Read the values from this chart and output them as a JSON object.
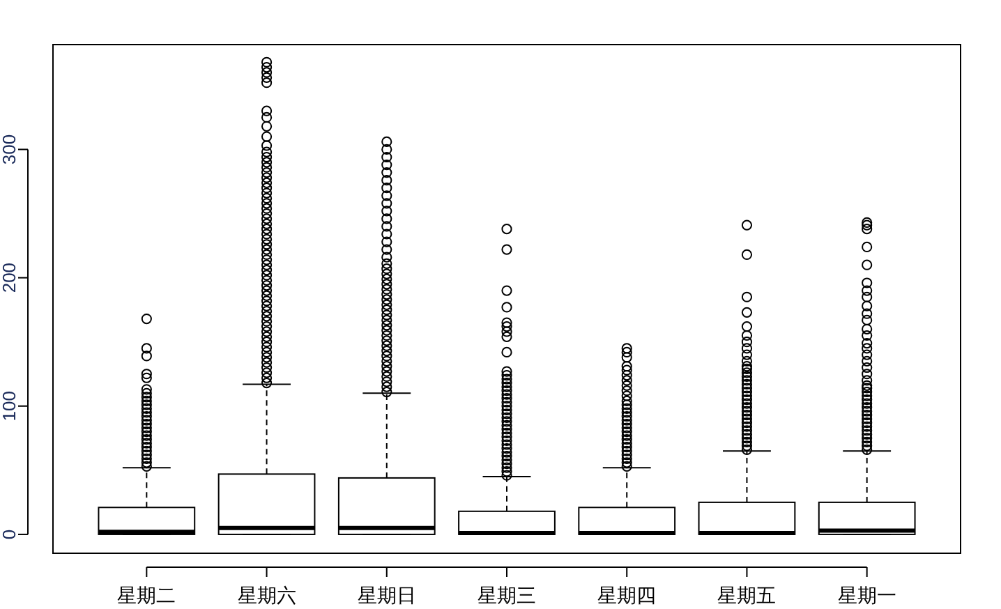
{
  "chart_data": {
    "type": "box",
    "categories": [
      "星期二",
      "星期六",
      "星期日",
      "星期三",
      "星期四",
      "星期五",
      "星期一"
    ],
    "ylim": [
      -14.7,
      381.7
    ],
    "yticks": [
      0,
      100,
      200,
      300
    ],
    "boxes": [
      {
        "low": 0,
        "q1": 0,
        "median": 2,
        "q3": 21,
        "high": 52,
        "outliers": [
          53,
          56,
          59,
          62,
          65,
          68,
          71,
          74,
          77,
          80,
          83,
          86,
          89,
          92,
          95,
          98,
          101,
          104,
          107,
          110,
          113,
          122,
          125,
          139,
          145,
          168
        ]
      },
      {
        "low": 0,
        "q1": 0,
        "median": 5,
        "q3": 47,
        "high": 117,
        "outliers": [
          118,
          122,
          126,
          130,
          134,
          138,
          142,
          146,
          150,
          154,
          158,
          162,
          166,
          170,
          174,
          178,
          182,
          186,
          190,
          194,
          198,
          202,
          206,
          210,
          214,
          218,
          222,
          226,
          230,
          234,
          238,
          242,
          246,
          250,
          254,
          258,
          262,
          266,
          270,
          274,
          278,
          282,
          286,
          290,
          294,
          298,
          303,
          310,
          318,
          325,
          330,
          352,
          356,
          360,
          364,
          368
        ]
      },
      {
        "low": 0,
        "q1": 0,
        "median": 5,
        "q3": 44,
        "high": 110,
        "outliers": [
          111,
          115,
          119,
          123,
          127,
          131,
          135,
          139,
          143,
          147,
          151,
          155,
          159,
          163,
          167,
          171,
          175,
          179,
          183,
          187,
          191,
          195,
          199,
          203,
          207,
          211,
          216,
          222,
          228,
          234,
          240,
          246,
          252,
          258,
          264,
          270,
          276,
          282,
          288,
          294,
          300,
          306
        ]
      },
      {
        "low": 0,
        "q1": 0,
        "median": 1,
        "q3": 18,
        "high": 45,
        "outliers": [
          46,
          49,
          52,
          55,
          58,
          61,
          64,
          67,
          70,
          73,
          76,
          79,
          82,
          85,
          88,
          91,
          94,
          97,
          100,
          103,
          106,
          109,
          112,
          115,
          118,
          121,
          124,
          127,
          142,
          154,
          158,
          162,
          165,
          177,
          190,
          222,
          238
        ]
      },
      {
        "low": 0,
        "q1": 0,
        "median": 1,
        "q3": 21,
        "high": 52,
        "outliers": [
          53,
          56,
          59,
          62,
          65,
          68,
          71,
          74,
          77,
          80,
          83,
          86,
          89,
          92,
          95,
          98,
          101,
          104,
          108,
          112,
          116,
          120,
          124,
          128,
          131,
          138,
          142,
          145
        ]
      },
      {
        "low": 0,
        "q1": 0,
        "median": 1,
        "q3": 25,
        "high": 65,
        "outliers": [
          66,
          69,
          72,
          75,
          78,
          81,
          84,
          87,
          90,
          93,
          96,
          99,
          102,
          105,
          108,
          111,
          114,
          117,
          120,
          123,
          126,
          129,
          131,
          135,
          140,
          145,
          150,
          155,
          162,
          173,
          185,
          218,
          241
        ]
      },
      {
        "low": 0,
        "q1": 0,
        "median": 3,
        "q3": 25,
        "high": 65,
        "outliers": [
          66,
          69,
          72,
          75,
          78,
          81,
          84,
          87,
          90,
          93,
          96,
          99,
          102,
          105,
          108,
          111,
          114,
          116,
          120,
          125,
          130,
          135,
          140,
          145,
          149,
          155,
          160,
          167,
          172,
          178,
          185,
          190,
          196,
          210,
          224,
          238,
          241,
          243
        ]
      }
    ]
  }
}
